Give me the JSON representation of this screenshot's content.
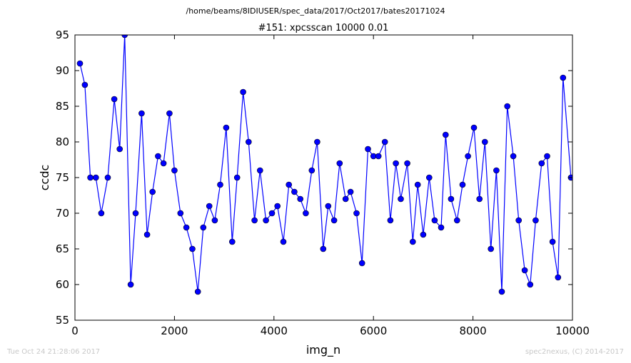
{
  "suptitle": "/home/beams/8IDIUSER/spec_data/2017/Oct2017/bates20171024",
  "footer_left": "Tue Oct 24 21:28:06 2017",
  "footer_right": "spec2nexus, (C) 2014-2017",
  "chart_data": {
    "type": "line",
    "title": "#151: xpcsscan 10000 0.01",
    "xlabel": "img_n",
    "ylabel": "ccdc",
    "xlim": [
      0,
      10000
    ],
    "ylim": [
      55,
      95
    ],
    "xticks": [
      0,
      2000,
      4000,
      6000,
      8000,
      10000
    ],
    "yticks": [
      55,
      60,
      65,
      70,
      75,
      80,
      85,
      90,
      95
    ],
    "line_color": "#0000ff",
    "marker_color": "#0000ff",
    "grid": false,
    "series": [
      {
        "x": [
          100,
          200,
          310,
          420,
          530,
          660,
          790,
          900,
          1000,
          1120,
          1220,
          1340,
          1450,
          1560,
          1670,
          1780,
          1900,
          2000,
          2120,
          2240,
          2360,
          2470,
          2580,
          2700,
          2810,
          2920,
          3040,
          3160,
          3260,
          3380,
          3490,
          3610,
          3720,
          3840,
          3960,
          4070,
          4190,
          4300,
          4410,
          4530,
          4640,
          4760,
          4870,
          4990,
          5090,
          5210,
          5320,
          5440,
          5540,
          5660,
          5770,
          5890,
          6000,
          6100,
          6230,
          6340,
          6450,
          6550,
          6680,
          6790,
          6890,
          7000,
          7120,
          7230,
          7360,
          7450,
          7560,
          7680,
          7790,
          7900,
          8020,
          8130,
          8240,
          8360,
          8470,
          8580,
          8690,
          8810,
          8920,
          9040,
          9150,
          9260,
          9380,
          9490,
          9600,
          9710,
          9810,
          9970
        ],
        "y": [
          91,
          88,
          75,
          75,
          70,
          75,
          86,
          79,
          95,
          60,
          70,
          84,
          67,
          73,
          78,
          77,
          84,
          76,
          70,
          68,
          65,
          59,
          68,
          71,
          69,
          74,
          82,
          66,
          75,
          87,
          80,
          69,
          76,
          69,
          70,
          71,
          66,
          74,
          73,
          72,
          70,
          76,
          80,
          65,
          71,
          69,
          77,
          72,
          73,
          70,
          63,
          79,
          78,
          78,
          80,
          69,
          77,
          72,
          77,
          66,
          74,
          67,
          75,
          69,
          68,
          81,
          72,
          69,
          74,
          78,
          82,
          72,
          80,
          65,
          76,
          59,
          85,
          78,
          69,
          62,
          60,
          69,
          77,
          78,
          66,
          61,
          89,
          75
        ]
      }
    ]
  }
}
